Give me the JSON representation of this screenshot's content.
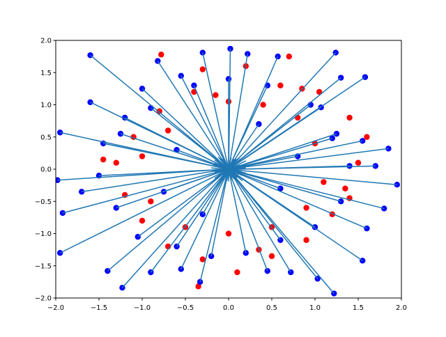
{
  "chart_data": {
    "type": "scatter",
    "xlim": [
      -2,
      2
    ],
    "ylim": [
      -2,
      2
    ],
    "xticks": [
      {
        "value": -2,
        "label": "−2.0"
      },
      {
        "value": -1.5,
        "label": "−1.5"
      },
      {
        "value": -1,
        "label": "−1.0"
      },
      {
        "value": -0.5,
        "label": "−0.5"
      },
      {
        "value": 0,
        "label": "0.0"
      },
      {
        "value": 0.5,
        "label": "0.5"
      },
      {
        "value": 1,
        "label": "1.0"
      },
      {
        "value": 1.5,
        "label": "1.5"
      },
      {
        "value": 2,
        "label": "2.0"
      }
    ],
    "yticks": [
      {
        "value": -2,
        "label": "−2.0"
      },
      {
        "value": -1.5,
        "label": "−1.5"
      },
      {
        "value": -1,
        "label": "−1.0"
      },
      {
        "value": -0.5,
        "label": "−0.5"
      },
      {
        "value": 0,
        "label": "0.0"
      },
      {
        "value": 0.5,
        "label": "0.5"
      },
      {
        "value": 1,
        "label": "1.0"
      },
      {
        "value": 1.5,
        "label": "1.5"
      },
      {
        "value": 2,
        "label": "2.0"
      }
    ],
    "series": [
      {
        "color": "#ff0000",
        "x": [
          -0.78,
          0.7,
          0.2,
          -0.3,
          0.6,
          1.05,
          1.4,
          1.6,
          1.5,
          1.35,
          1.2,
          0.9,
          0.5,
          0.1,
          -0.3,
          -0.7,
          -1.0,
          -1.2,
          -1.3,
          -1.1,
          -0.8,
          -0.4,
          0.0,
          0.4,
          0.8,
          1.0,
          1.1,
          0.9,
          0.5,
          0.0,
          -0.5,
          -0.9,
          -1.0,
          -0.7,
          -0.35,
          0.35,
          1.4,
          -1.45,
          -0.15,
          0.85
        ],
        "y": [
          1.78,
          1.75,
          1.6,
          1.55,
          1.3,
          1.2,
          0.8,
          0.5,
          0.1,
          -0.3,
          -0.7,
          -1.1,
          -1.35,
          -1.6,
          -1.4,
          -1.2,
          -0.8,
          -0.4,
          0.1,
          0.5,
          0.9,
          1.2,
          1.05,
          1.0,
          0.8,
          0.4,
          -0.2,
          -0.6,
          -0.9,
          -1.0,
          -0.9,
          -0.5,
          0.2,
          0.6,
          -1.82,
          -1.25,
          -0.45,
          0.15,
          1.15,
          1.25
        ]
      },
      {
        "color": "#0000ff",
        "x": [
          -1.6,
          -1.6,
          -1.95,
          -1.98,
          -1.92,
          -1.95,
          -1.4,
          -1.23,
          -0.9,
          -0.55,
          -0.33,
          0.45,
          0.72,
          1.03,
          1.22,
          1.55,
          1.6,
          1.8,
          1.95,
          1.85,
          1.55,
          1.2,
          1.07,
          1.3,
          1.58,
          1.24,
          0.57,
          0.22,
          0.02,
          -0.3,
          -0.55,
          -0.82,
          -1.0,
          -1.2,
          -1.45,
          -1.5,
          -1.3,
          -1.05,
          -0.6,
          -0.2,
          0.2,
          0.6,
          1.0,
          1.3,
          1.4,
          1.25,
          0.95,
          0.45,
          0.0,
          -0.4,
          -0.9,
          -1.25,
          -0.6,
          0.6,
          -0.3,
          0.35,
          -0.75,
          0.8,
          -1.7,
          1.7
        ],
        "y": [
          1.77,
          1.04,
          0.57,
          -0.17,
          -0.68,
          -1.3,
          -1.58,
          -1.84,
          -1.6,
          -1.55,
          -1.75,
          -1.58,
          -1.6,
          -1.7,
          -1.93,
          -1.42,
          -0.92,
          -0.61,
          -0.24,
          0.32,
          0.44,
          0.48,
          0.96,
          1.42,
          1.43,
          1.81,
          1.75,
          1.79,
          1.87,
          1.81,
          1.45,
          1.68,
          1.25,
          0.8,
          0.4,
          -0.1,
          -0.6,
          -1.05,
          -1.2,
          -1.35,
          -1.3,
          -1.1,
          -0.9,
          -0.5,
          0.05,
          0.55,
          1.0,
          1.3,
          1.4,
          1.3,
          0.95,
          0.55,
          0.3,
          -0.3,
          -0.7,
          0.7,
          -0.35,
          0.2,
          -0.35,
          0.05
        ]
      }
    ],
    "segments": {
      "color": "#1f77b4",
      "x1": [
        -1.6,
        -1.6,
        -1.95,
        -1.98,
        -1.92,
        -1.95,
        -1.4,
        -1.23,
        -0.9,
        -0.55,
        -0.33,
        0.45,
        0.72,
        1.03,
        1.22,
        1.55,
        1.6,
        1.8,
        1.95,
        1.85,
        1.55,
        1.2,
        1.07,
        1.3,
        1.58,
        1.24,
        0.57,
        0.22,
        0.02,
        -0.3,
        -0.55,
        -0.82,
        -1.0,
        -1.2,
        -1.45,
        -1.5,
        -1.3,
        -1.05,
        -0.6,
        -0.2,
        0.2,
        0.6,
        1.0,
        1.3,
        1.4,
        1.25,
        0.95,
        0.45,
        0.0,
        -0.4,
        -0.9,
        -1.25,
        -0.6,
        0.6,
        -0.3,
        0.35,
        -0.75,
        0.8,
        -1.7,
        1.7
      ],
      "y1": [
        1.77,
        1.04,
        0.57,
        -0.17,
        -0.68,
        -1.3,
        -1.58,
        -1.84,
        -1.6,
        -1.55,
        -1.75,
        -1.58,
        -1.6,
        -1.7,
        -1.93,
        -1.42,
        -0.92,
        -0.61,
        -0.24,
        0.32,
        0.44,
        0.48,
        0.96,
        1.42,
        1.43,
        1.81,
        1.75,
        1.79,
        1.87,
        1.81,
        1.45,
        1.68,
        1.25,
        0.8,
        0.4,
        -0.1,
        -0.6,
        -1.05,
        -1.2,
        -1.35,
        -1.3,
        -1.1,
        -0.9,
        -0.5,
        0.05,
        0.55,
        1.0,
        1.3,
        1.4,
        1.3,
        0.95,
        0.55,
        0.3,
        -0.3,
        -0.7,
        0.7,
        -0.35,
        0.2,
        -0.35,
        0.05
      ],
      "x2": [
        0.16,
        0.16,
        0.2,
        0.2,
        0.19,
        0.2,
        0.14,
        0.12,
        0.09,
        0.06,
        0.03,
        -0.05,
        -0.07,
        -0.1,
        -0.12,
        -0.16,
        -0.16,
        -0.18,
        -0.2,
        -0.19,
        -0.16,
        -0.12,
        -0.11,
        -0.13,
        -0.16,
        -0.12,
        -0.06,
        -0.02,
        0,
        0.03,
        0.06,
        0.08,
        0.1,
        0.12,
        0.15,
        0.15,
        0.13,
        0.11,
        0.06,
        0.02,
        -0.02,
        -0.06,
        -0.1,
        -0.13,
        -0.14,
        -0.13,
        -0.1,
        -0.05,
        0,
        0.04,
        0.09,
        0.13,
        0.06,
        -0.06,
        0.03,
        -0.04,
        0.08,
        -0.08,
        0.17,
        -0.17
      ],
      "y2": [
        -0.18,
        -0.1,
        -0.06,
        0.02,
        0.07,
        0.13,
        0.16,
        0.18,
        0.16,
        0.16,
        0.18,
        0.16,
        0.16,
        0.17,
        0.19,
        0.14,
        0.09,
        0.06,
        0.02,
        -0.03,
        -0.04,
        -0.05,
        -0.1,
        -0.14,
        -0.14,
        -0.18,
        -0.18,
        -0.18,
        -0.19,
        -0.18,
        -0.15,
        -0.17,
        -0.13,
        -0.08,
        -0.04,
        0.01,
        0.06,
        0.11,
        0.12,
        0.14,
        0.13,
        0.11,
        0.09,
        0.05,
        -0.01,
        -0.06,
        -0.1,
        -0.13,
        -0.14,
        -0.13,
        -0.1,
        -0.06,
        -0.03,
        0.03,
        0.07,
        -0.07,
        0.04,
        -0.02,
        0.04,
        -0.01
      ]
    }
  }
}
